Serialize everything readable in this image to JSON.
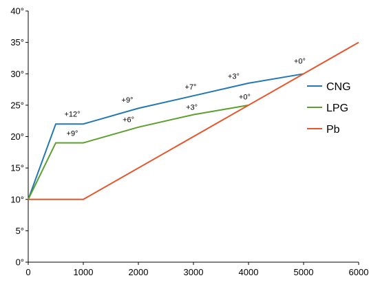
{
  "chart_data": {
    "type": "line",
    "title": "",
    "xlabel": "",
    "ylabel": "",
    "xlim": [
      0,
      6000
    ],
    "ylim": [
      0,
      40
    ],
    "x_ticks": [
      0,
      1000,
      2000,
      3000,
      4000,
      5000,
      6000
    ],
    "x_tick_labels": [
      "0",
      "1000",
      "2000",
      "3000",
      "4000",
      "5000",
      "6000"
    ],
    "y_ticks": [
      0,
      5,
      10,
      15,
      20,
      25,
      30,
      35,
      40
    ],
    "y_tick_labels": [
      "0°",
      "5°",
      "10°",
      "15°",
      "20°",
      "25°",
      "30°",
      "35°",
      "40°"
    ],
    "grid": false,
    "legend_position": "right",
    "series": [
      {
        "name": "CNG",
        "color": "#1f77b4",
        "points": [
          [
            0,
            10
          ],
          [
            500,
            22
          ],
          [
            1000,
            22
          ],
          [
            2000,
            24.5
          ],
          [
            3000,
            26.5
          ],
          [
            4000,
            28.5
          ],
          [
            5000,
            30
          ]
        ]
      },
      {
        "name": "LPG",
        "color": "#5aa02c",
        "points": [
          [
            0,
            10
          ],
          [
            500,
            19
          ],
          [
            1000,
            19
          ],
          [
            2000,
            21.5
          ],
          [
            3000,
            23.5
          ],
          [
            4000,
            25
          ]
        ]
      },
      {
        "name": "Pb",
        "color": "#e8552a",
        "points": [
          [
            0,
            10
          ],
          [
            1000,
            10
          ],
          [
            6000,
            35
          ]
        ]
      }
    ],
    "annotations": [
      {
        "text": "+12°",
        "x": 800,
        "y": 23.2
      },
      {
        "text": "+9°",
        "x": 800,
        "y": 20.1
      },
      {
        "text": "+9°",
        "x": 1800,
        "y": 25.4
      },
      {
        "text": "+6°",
        "x": 1820,
        "y": 22.3
      },
      {
        "text": "+7°",
        "x": 2950,
        "y": 27.5
      },
      {
        "text": "+3°",
        "x": 2970,
        "y": 24.3
      },
      {
        "text": "+3°",
        "x": 3730,
        "y": 29.2
      },
      {
        "text": "+0°",
        "x": 3930,
        "y": 25.9
      },
      {
        "text": "+0°",
        "x": 4930,
        "y": 31.6
      }
    ]
  }
}
